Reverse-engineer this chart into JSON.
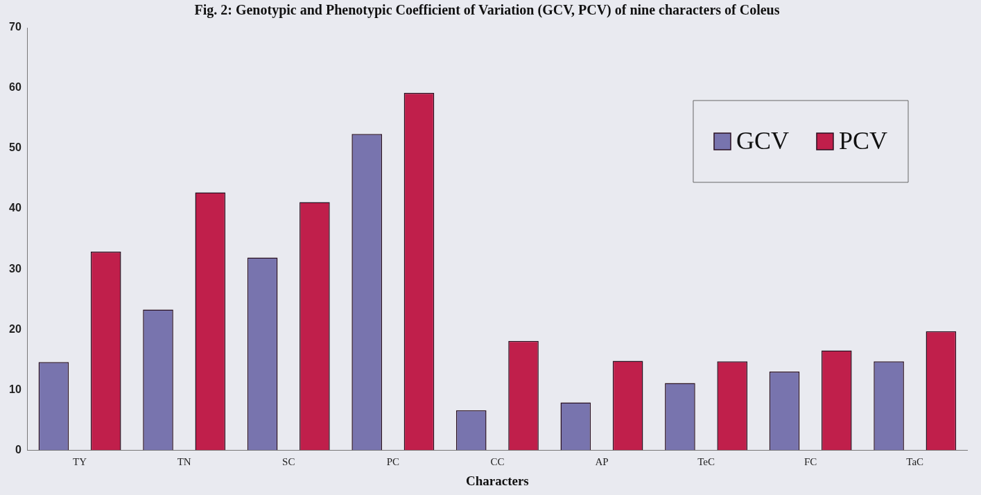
{
  "chart_data": {
    "type": "bar",
    "title": "Fig. 2: Genotypic and Phenotypic Coefficient of Variation (GCV, PCV) of nine characters of Coleus",
    "xlabel": "Characters",
    "categories": [
      "TY",
      "TN",
      "SC",
      "PC",
      "CC",
      "AP",
      "TeC",
      "FC",
      "TaC"
    ],
    "series": [
      {
        "name": "GCV",
        "color": "#7874ae",
        "values": [
          14.6,
          23.3,
          31.9,
          52.4,
          6.6,
          7.9,
          11.1,
          13.0,
          14.7
        ]
      },
      {
        "name": "PCV",
        "color": "#c01f4b",
        "values": [
          32.9,
          42.7,
          41.1,
          59.2,
          18.1,
          14.8,
          14.7,
          16.5,
          19.7
        ]
      }
    ],
    "ylim": [
      0,
      70
    ],
    "yticks": [
      0,
      10,
      20,
      30,
      40,
      50,
      60,
      70
    ],
    "grid": false,
    "legend": "top right"
  }
}
